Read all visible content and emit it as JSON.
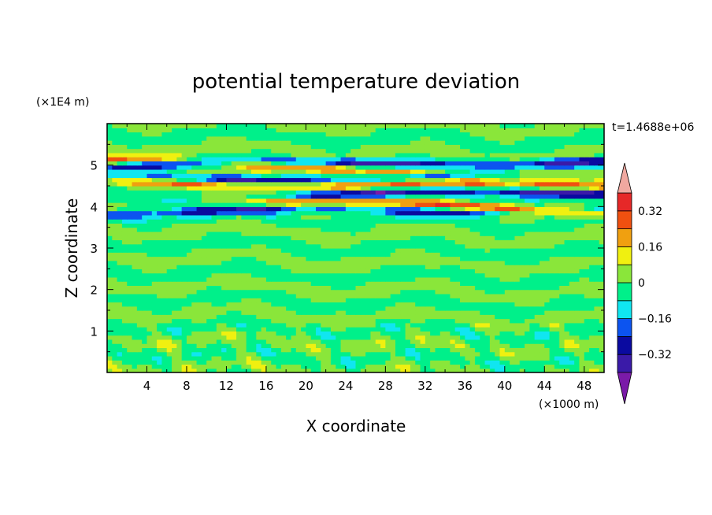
{
  "chart_data": {
    "type": "heatmap",
    "title": "potential temperature deviation",
    "time_label": "t=1.4688e+06",
    "xlabel": "X coordinate",
    "ylabel": "Z coordinate",
    "x_unit": "(×1000 m)",
    "y_unit": "(×1E4 m)",
    "xlim": [
      0,
      50
    ],
    "ylim": [
      0,
      6
    ],
    "x_ticks": [
      "4",
      "8",
      "12",
      "16",
      "20",
      "24",
      "28",
      "32",
      "36",
      "40",
      "44",
      "48"
    ],
    "y_ticks": [
      "1",
      "2",
      "3",
      "4",
      "5"
    ],
    "colorbar": {
      "levels": [
        -0.48,
        -0.4,
        -0.32,
        -0.24,
        -0.16,
        -0.08,
        0,
        0.08,
        0.16,
        0.24,
        0.32,
        0.4,
        0.48
      ],
      "tick_labels": [
        "0.32",
        "0.16",
        "0",
        "−0.16",
        "−0.32"
      ],
      "tick_values": [
        0.32,
        0.16,
        0,
        -0.16,
        -0.32
      ],
      "bands": [
        {
          "from": -0.4,
          "to": -0.32,
          "color": "#3a1aa8"
        },
        {
          "from": -0.32,
          "to": -0.24,
          "color": "#0a0aa0"
        },
        {
          "from": -0.24,
          "to": -0.16,
          "color": "#0c54f0"
        },
        {
          "from": -0.16,
          "to": -0.08,
          "color": "#10e6f0"
        },
        {
          "from": -0.08,
          "to": 0,
          "color": "#00f08a"
        },
        {
          "from": 0,
          "to": 0.08,
          "color": "#8ae63a"
        },
        {
          "from": 0.08,
          "to": 0.16,
          "color": "#f0f010"
        },
        {
          "from": 0.16,
          "to": 0.24,
          "color": "#f0a010"
        },
        {
          "from": 0.24,
          "to": 0.32,
          "color": "#f05010"
        },
        {
          "from": 0.32,
          "to": 0.4,
          "color": "#e62828"
        }
      ],
      "under_color": "#7a1aa8",
      "over_color": "#f0a8a0"
    },
    "field_features": [
      {
        "z": 5.05,
        "value": -0.32
      },
      {
        "z": 4.95,
        "value": 0.3
      },
      {
        "z": 4.75,
        "value": -0.34
      },
      {
        "z": 4.55,
        "value": 0.28
      },
      {
        "z": 4.25,
        "value": -0.36
      },
      {
        "z": 4.05,
        "value": 0.36
      },
      {
        "z": 3.9,
        "value": -0.3
      }
    ]
  }
}
